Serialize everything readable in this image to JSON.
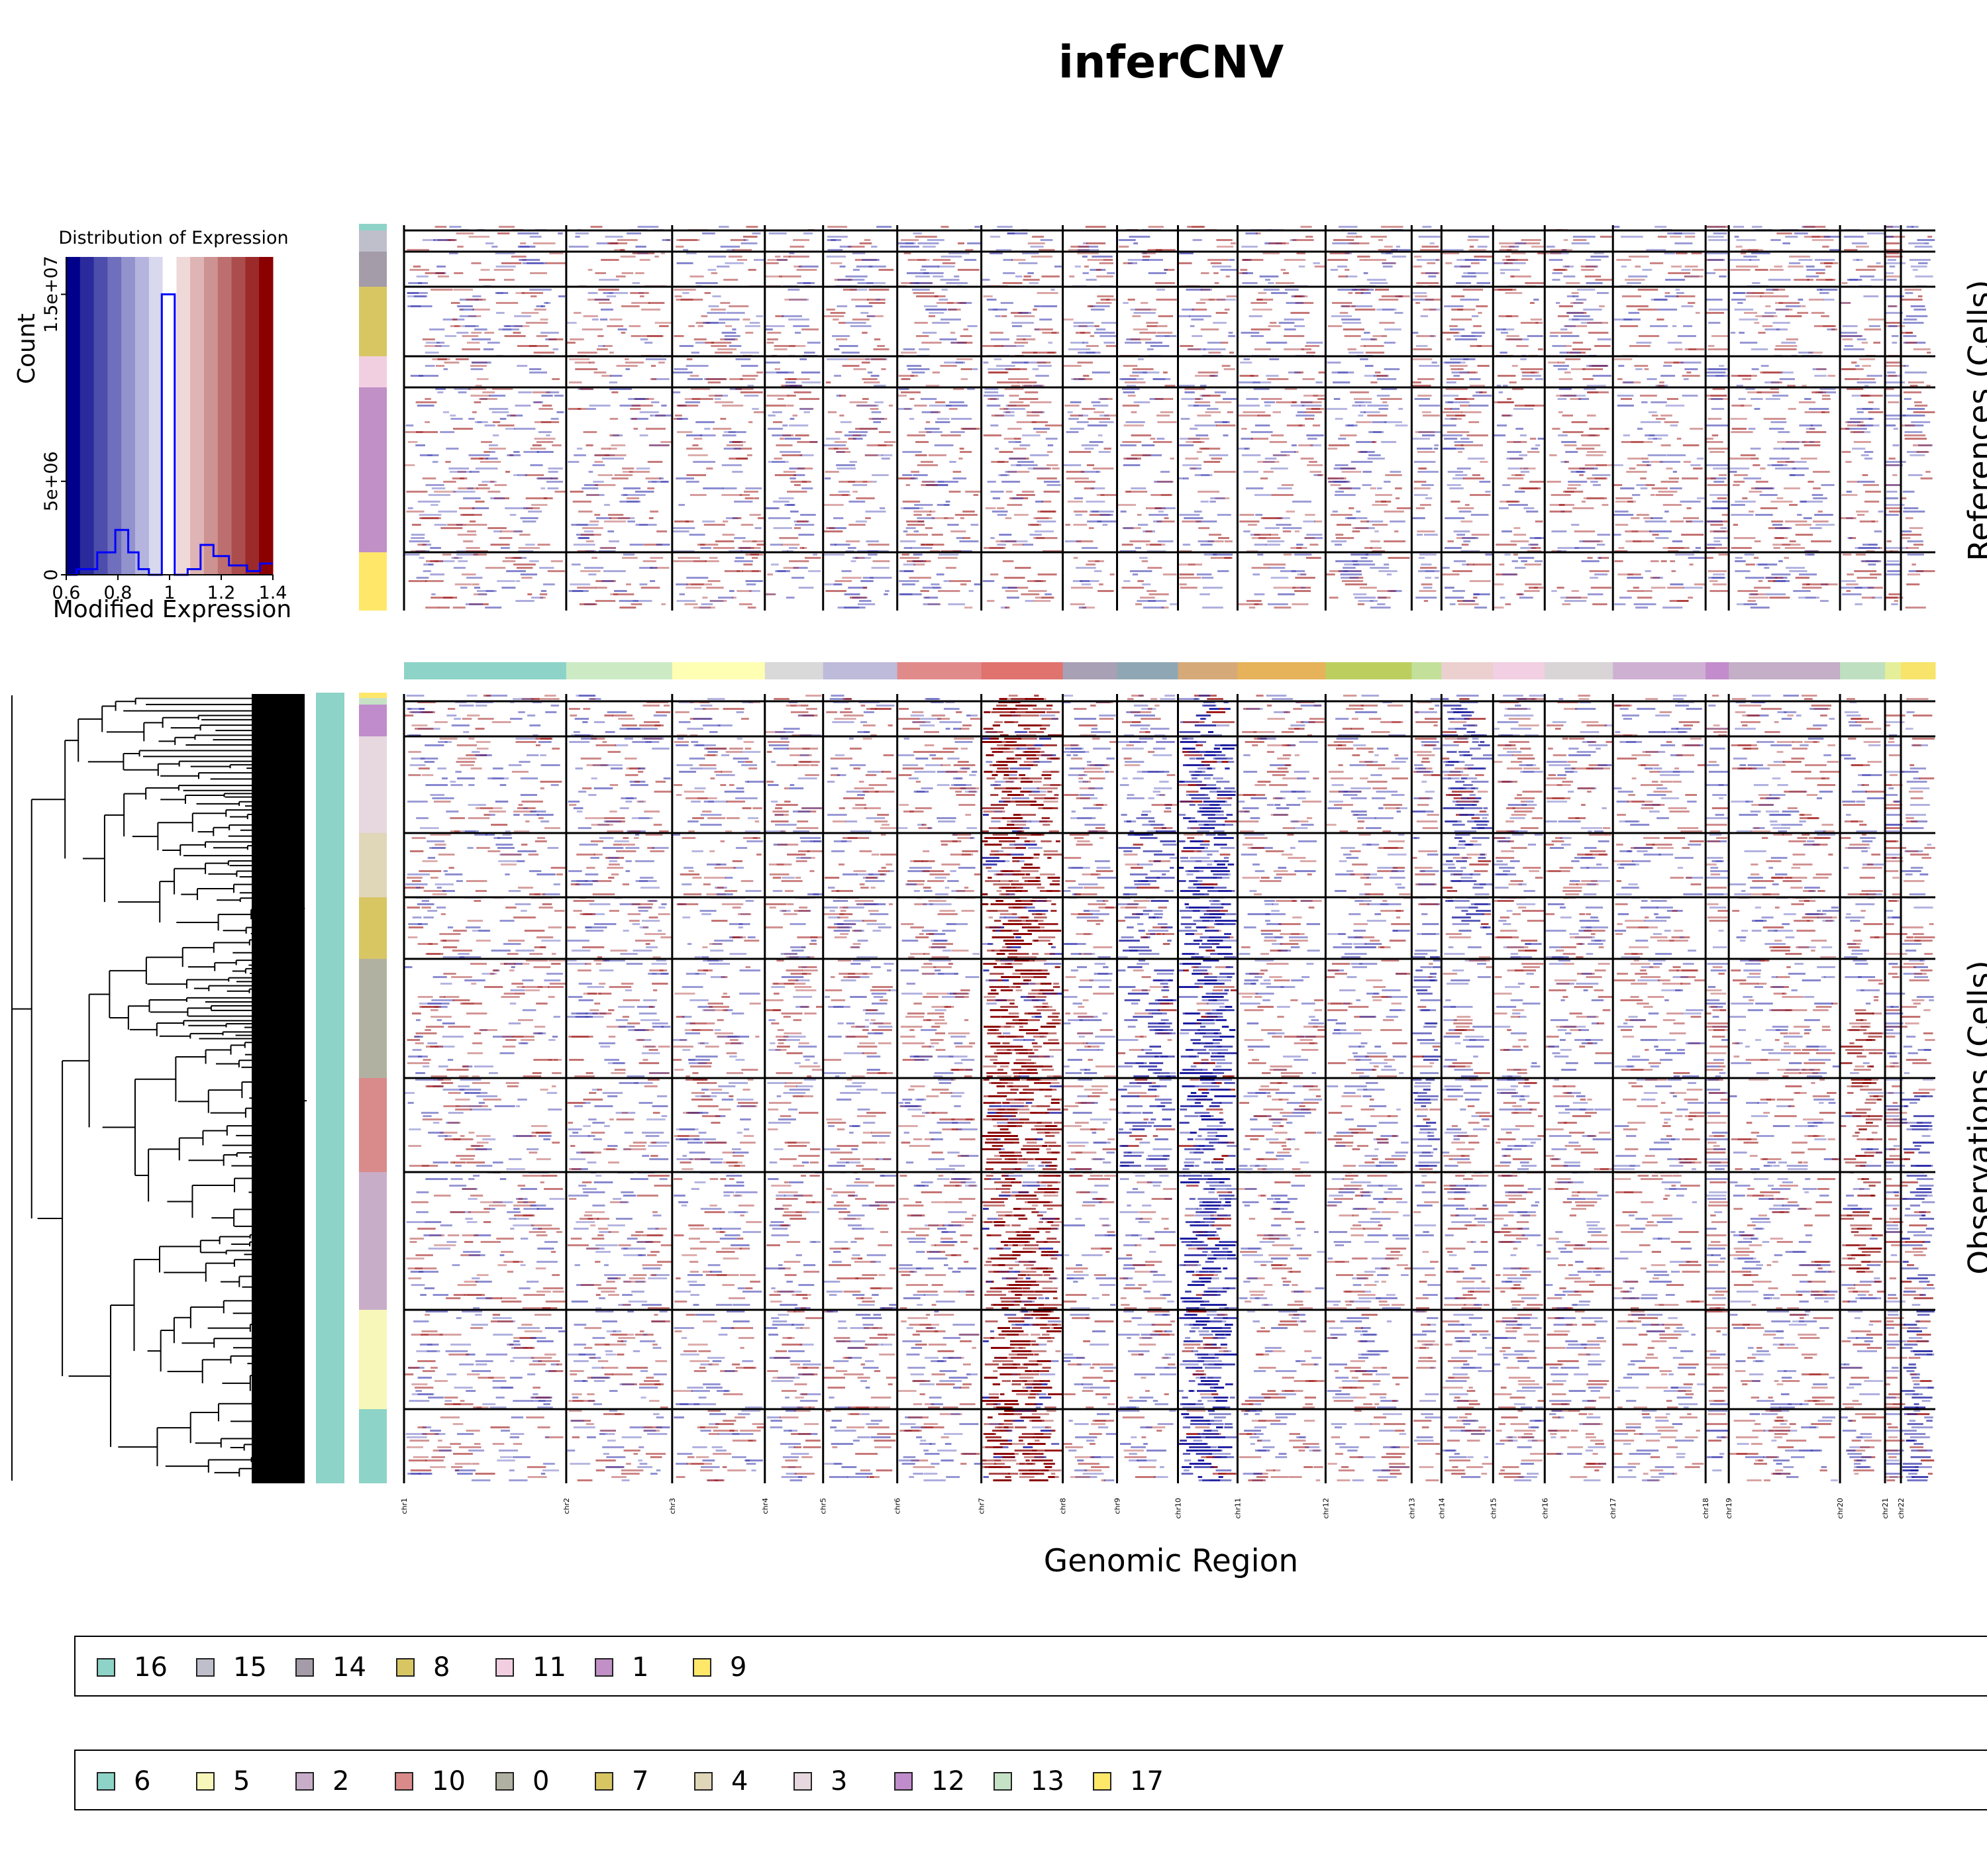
{
  "title": "inferCNV",
  "histogram": {
    "title": "Distribution of Expression",
    "xlabel": "Modified Expression",
    "ylabel": "Count",
    "xticks": [
      "0.6",
      "0.8",
      "1",
      "1.2",
      "1.4"
    ],
    "yticks": [
      "0",
      "5e+06",
      "1.5e+07"
    ],
    "colors": [
      "#00008b",
      "#2a2a9c",
      "#4d4dac",
      "#6f6fbd",
      "#9292cd",
      "#b4b4de",
      "#d8d8ee",
      "#ffffff",
      "#eed8d8",
      "#deb4b4",
      "#cd9292",
      "#bd6f6f",
      "#ac4d4d",
      "#9c2a2a",
      "#8b0000"
    ]
  },
  "references_label": "References (Cells)",
  "observations_label": "Observations (Cells)",
  "xlabel": "Genomic Region",
  "chromosomes": [
    {
      "name": "chr1",
      "color": "#8dd3c7"
    },
    {
      "name": "chr2",
      "color": "#ccebc5"
    },
    {
      "name": "chr3",
      "color": "#ffffb3"
    },
    {
      "name": "chr4",
      "color": "#d9d9d9"
    },
    {
      "name": "chr5",
      "color": "#bebada"
    },
    {
      "name": "chr6",
      "color": "#e18a8a"
    },
    {
      "name": "chr7",
      "color": "#e0736e"
    },
    {
      "name": "chr8",
      "color": "#a8a0b4"
    },
    {
      "name": "chr9",
      "color": "#8fa7b4"
    },
    {
      "name": "chr10",
      "color": "#d5aa78"
    },
    {
      "name": "chr11",
      "color": "#e6b35a"
    },
    {
      "name": "chr12",
      "color": "#bccf5e"
    },
    {
      "name": "chr13",
      "color": "#c3e09a"
    },
    {
      "name": "chr14",
      "color": "#ecd0d0"
    },
    {
      "name": "chr15",
      "color": "#f2cfe2"
    },
    {
      "name": "chr16",
      "color": "#d9d4d6"
    },
    {
      "name": "chr17",
      "color": "#cdb0d2"
    },
    {
      "name": "chr18",
      "color": "#c38ccc"
    },
    {
      "name": "chr19",
      "color": "#c4aec8"
    },
    {
      "name": "chr20",
      "color": "#bfe0c0"
    },
    {
      "name": "chr21",
      "color": "#e5ef9a"
    },
    {
      "name": "chr22",
      "color": "#f8e46a"
    }
  ],
  "reference_groups": [
    {
      "name": "16",
      "color": "#8dd3c7"
    },
    {
      "name": "15",
      "color": "#bfbfcc"
    },
    {
      "name": "14",
      "color": "#a49ca8"
    },
    {
      "name": "8",
      "color": "#d8c663"
    },
    {
      "name": "11",
      "color": "#f2cfe0"
    },
    {
      "name": "1",
      "color": "#c090c6"
    },
    {
      "name": "9",
      "color": "#ffe76a"
    }
  ],
  "observation_groups": [
    {
      "name": "6",
      "color": "#8dd3c7"
    },
    {
      "name": "5",
      "color": "#f7f7b9"
    },
    {
      "name": "2",
      "color": "#c8adc8"
    },
    {
      "name": "10",
      "color": "#d98a8a"
    },
    {
      "name": "0",
      "color": "#b1b1a1"
    },
    {
      "name": "7",
      "color": "#d8c663"
    },
    {
      "name": "4",
      "color": "#e0d6b8"
    },
    {
      "name": "3",
      "color": "#e6d8de"
    },
    {
      "name": "12",
      "color": "#c08ccc"
    },
    {
      "name": "13",
      "color": "#c6e2c6"
    },
    {
      "name": "17",
      "color": "#ffe76a"
    }
  ]
}
